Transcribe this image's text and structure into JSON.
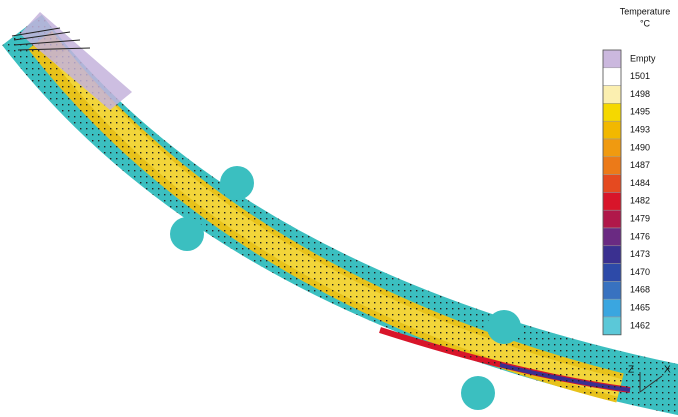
{
  "legend": {
    "title": "Temperature",
    "unit": "°C",
    "entries": [
      {
        "label": "Empty",
        "color": "#cbb8de"
      },
      {
        "label": "1501",
        "color": "#ffffff"
      },
      {
        "label": "1498",
        "color": "#fbefb0"
      },
      {
        "label": "1495",
        "color": "#f5d800"
      },
      {
        "label": "1493",
        "color": "#f2b800"
      },
      {
        "label": "1490",
        "color": "#f09a10"
      },
      {
        "label": "1487",
        "color": "#ec7a18"
      },
      {
        "label": "1484",
        "color": "#e54a20"
      },
      {
        "label": "1482",
        "color": "#d8152a"
      },
      {
        "label": "1479",
        "color": "#b0184a"
      },
      {
        "label": "1476",
        "color": "#6a2a82"
      },
      {
        "label": "1473",
        "color": "#3a3090"
      },
      {
        "label": "1470",
        "color": "#2d4aa8"
      },
      {
        "label": "1468",
        "color": "#3872c0"
      },
      {
        "label": "1465",
        "color": "#3aa6e0"
      },
      {
        "label": "1462",
        "color": "#5bc8d8"
      }
    ]
  },
  "axes": {
    "vertical": "Z",
    "horizontal": "X"
  }
}
